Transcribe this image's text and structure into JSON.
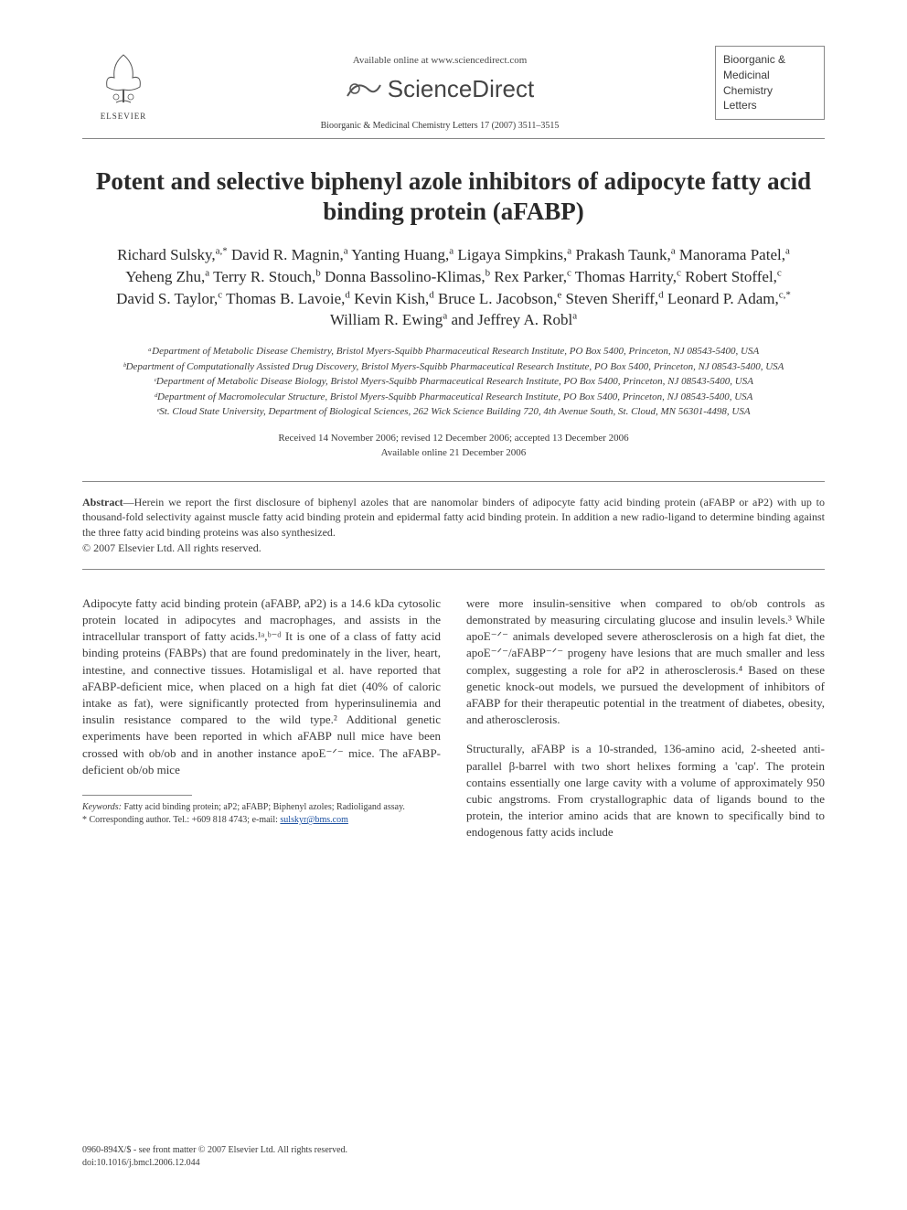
{
  "header": {
    "publisher_label": "ELSEVIER",
    "available_online": "Available online at www.sciencedirect.com",
    "sd_brand": "ScienceDirect",
    "journal_ref": "Bioorganic & Medicinal Chemistry Letters 17 (2007) 3511–3515",
    "journal_box_lines": [
      "Bioorganic &",
      "Medicinal",
      "Chemistry",
      "Letters"
    ]
  },
  "title": "Potent and selective biphenyl azole inhibitors of adipocyte fatty acid binding protein (aFABP)",
  "authors_html": "Richard Sulsky,<span class='sup'>a,*</span> David R. Magnin,<span class='sup'>a</span> Yanting Huang,<span class='sup'>a</span> Ligaya Simpkins,<span class='sup'>a</span> Prakash Taunk,<span class='sup'>a</span> Manorama Patel,<span class='sup'>a</span> Yeheng Zhu,<span class='sup'>a</span> Terry R. Stouch,<span class='sup'>b</span> Donna Bassolino-Klimas,<span class='sup'>b</span> Rex Parker,<span class='sup'>c</span> Thomas Harrity,<span class='sup'>c</span> Robert Stoffel,<span class='sup'>c</span> David S. Taylor,<span class='sup'>c</span> Thomas B. Lavoie,<span class='sup'>d</span> Kevin Kish,<span class='sup'>d</span> Bruce L. Jacobson,<span class='sup'>e</span> Steven Sheriff,<span class='sup'>d</span> Leonard P. Adam,<span class='sup'>c,*</span> William R. Ewing<span class='sup'>a</span> and Jeffrey A. Robl<span class='sup'>a</span>",
  "affiliations": [
    "ᵃDepartment of Metabolic Disease Chemistry, Bristol Myers-Squibb Pharmaceutical Research Institute, PO Box 5400, Princeton, NJ 08543-5400, USA",
    "ᵇDepartment of Computationally Assisted Drug Discovery, Bristol Myers-Squibb Pharmaceutical Research Institute, PO Box 5400, Princeton, NJ 08543-5400, USA",
    "ᶜDepartment of Metabolic Disease Biology, Bristol Myers-Squibb Pharmaceutical Research Institute, PO Box 5400, Princeton, NJ 08543-5400, USA",
    "ᵈDepartment of Macromolecular Structure, Bristol Myers-Squibb Pharmaceutical Research Institute, PO Box 5400, Princeton, NJ 08543-5400, USA",
    "ᵉSt. Cloud State University, Department of Biological Sciences, 262 Wick Science Building 720, 4th Avenue South, St. Cloud, MN 56301-4498, USA"
  ],
  "dates": {
    "received_line": "Received 14 November 2006; revised 12 December 2006; accepted 13 December 2006",
    "online_line": "Available online 21 December 2006"
  },
  "abstract": "Abstract—Herein we report the first disclosure of biphenyl azoles that are nanomolar binders of adipocyte fatty acid binding protein (aFABP or aP2) with up to thousand-fold selectivity against muscle fatty acid binding protein and epidermal fatty acid binding protein. In addition a new radio-ligand to determine binding against the three fatty acid binding proteins was also synthesized.",
  "copyright_abstract": "© 2007 Elsevier Ltd. All rights reserved.",
  "body": {
    "col1_p1": "Adipocyte fatty acid binding protein (aFABP, aP2) is a 14.6 kDa cytosolic protein located in adipocytes and macrophages, and assists in the intracellular transport of fatty acids.¹ᵃ,ᵇ⁻ᵈ It is one of a class of fatty acid binding proteins (FABPs) that are found predominately in the liver, heart, intestine, and connective tissues. Hotamisligal et al. have reported that aFABP-deficient mice, when placed on a high fat diet (40% of caloric intake as fat), were significantly protected from hyperinsulinemia and insulin resistance compared to the wild type.² Additional genetic experiments have been reported in which aFABP null mice have been crossed with ob/ob and in another instance apoE⁻ᐟ⁻ mice. The aFABP-deficient ob/ob mice",
    "col2_p1": "were more insulin-sensitive when compared to ob/ob controls as demonstrated by measuring circulating glucose and insulin levels.³ While apoE⁻ᐟ⁻ animals developed severe atherosclerosis on a high fat diet, the apoE⁻ᐟ⁻/aFABP⁻ᐟ⁻ progeny have lesions that are much smaller and less complex, suggesting a role for aP2 in atherosclerosis.⁴ Based on these genetic knock-out models, we pursued the development of inhibitors of aFABP for their therapeutic potential in the treatment of diabetes, obesity, and atherosclerosis.",
    "col2_p2": "Structurally, aFABP is a 10-stranded, 136-amino acid, 2-sheeted anti-parallel β-barrel with two short helixes forming a 'cap'. The protein contains essentially one large cavity with a volume of approximately 950 cubic angstroms. From crystallographic data of ligands bound to the protein, the interior amino acids that are known to specifically bind to endogenous fatty acids include"
  },
  "footnotes": {
    "keywords_label": "Keywords:",
    "keywords": "Fatty acid binding protein; aP2; aFABP; Biphenyl azoles; Radioligand assay.",
    "corresponding": "* Corresponding author. Tel.: +609 818 4743; e-mail: ",
    "email": "sulskyr@bms.com"
  },
  "bottom": {
    "line1": "0960-894X/$ - see front matter © 2007 Elsevier Ltd. All rights reserved.",
    "line2": "doi:10.1016/j.bmcl.2006.12.044"
  },
  "colors": {
    "text": "#3a3a3a",
    "link": "#1a4fa0",
    "border": "#888888",
    "background": "#ffffff"
  },
  "typography": {
    "title_fontsize": 27,
    "author_fontsize": 17,
    "affil_fontsize": 11,
    "body_fontsize": 13,
    "abstract_fontsize": 12,
    "footnote_fontsize": 10
  }
}
